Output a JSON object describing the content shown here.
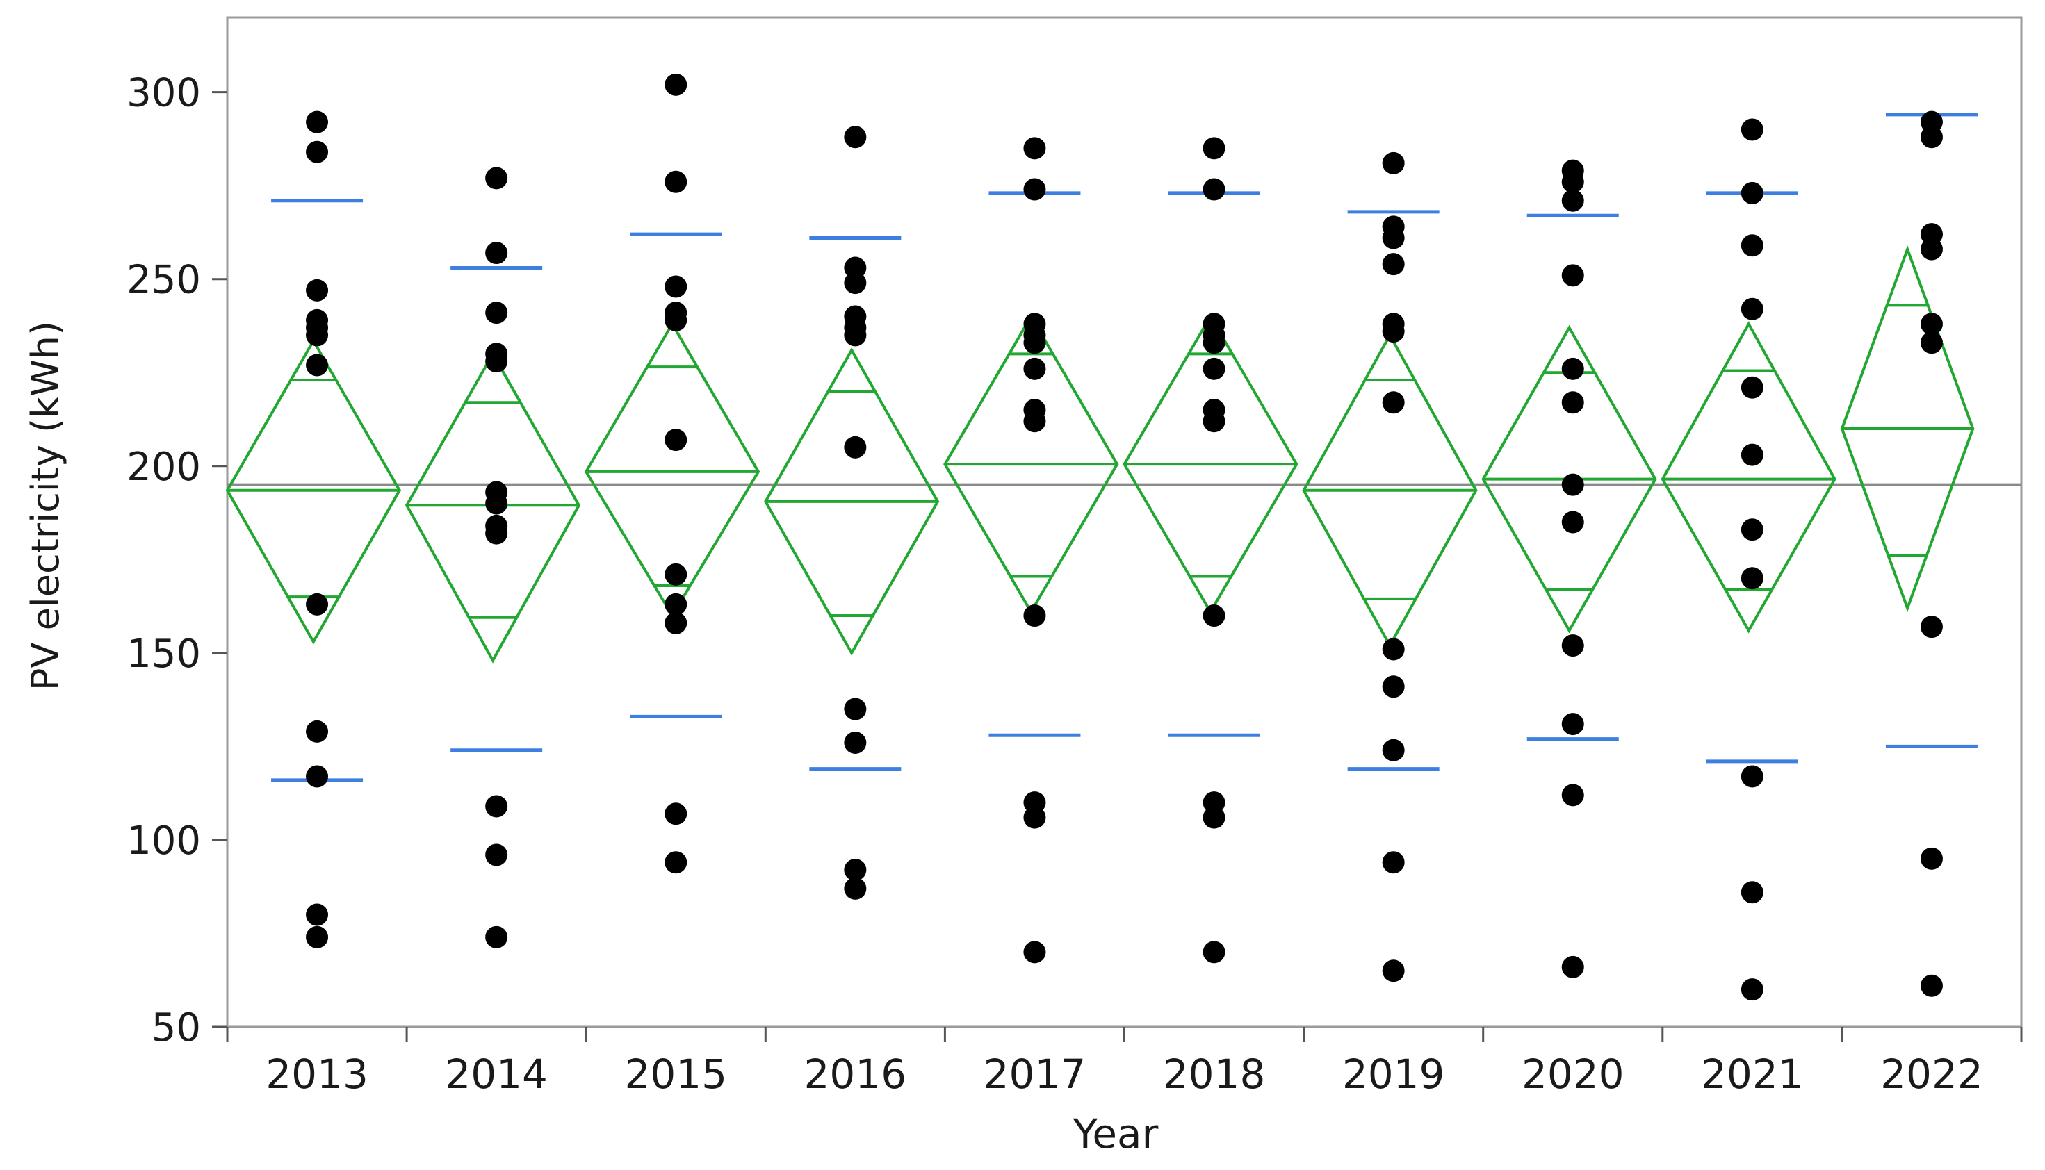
{
  "chart_data": {
    "type": "scatter",
    "subtype": "oneway means diamonds",
    "xlabel": "Year",
    "ylabel": "PV electricity (kWh)",
    "ylim": [
      50,
      320
    ],
    "yticks": [
      50,
      100,
      150,
      200,
      250,
      300
    ],
    "categories": [
      "2013",
      "2014",
      "2015",
      "2016",
      "2017",
      "2018",
      "2019",
      "2020",
      "2021",
      "2022"
    ],
    "grand_mean": 195,
    "group_weights": [
      0.96,
      0.96,
      0.96,
      0.96,
      0.96,
      0.96,
      0.96,
      0.96,
      0.96,
      0.73
    ],
    "points": [
      [
        292,
        284,
        247,
        239,
        237,
        235,
        227,
        163,
        129,
        117,
        80,
        74
      ],
      [
        277,
        257,
        241,
        230,
        228,
        193,
        190,
        184,
        182,
        109,
        96,
        74
      ],
      [
        302,
        276,
        248,
        241,
        239,
        207,
        171,
        163,
        158,
        107,
        94
      ],
      [
        288,
        253,
        249,
        240,
        237,
        235,
        205,
        135,
        126,
        92,
        87
      ],
      [
        285,
        274,
        238,
        235,
        233,
        226,
        215,
        212,
        160,
        110,
        106,
        70
      ],
      [
        285,
        274,
        238,
        235,
        233,
        226,
        215,
        212,
        160,
        110,
        106,
        70
      ],
      [
        281,
        264,
        261,
        254,
        238,
        236,
        217,
        151,
        141,
        124,
        94,
        65
      ],
      [
        279,
        276,
        271,
        251,
        226,
        217,
        195,
        185,
        152,
        131,
        112,
        66
      ],
      [
        290,
        273,
        259,
        242,
        221,
        203,
        183,
        170,
        117,
        86,
        60
      ],
      [
        292,
        288,
        262,
        258,
        238,
        233,
        157,
        95,
        61
      ]
    ],
    "means": [
      193.5,
      189.5,
      198.5,
      190.5,
      200.5,
      200.5,
      193.5,
      196.5,
      196.5,
      210
    ],
    "ci_lower": [
      153,
      148,
      160,
      150,
      161,
      161,
      152,
      156,
      156,
      162
    ],
    "ci_upper": [
      233.5,
      230,
      238,
      231,
      240,
      240,
      235,
      237,
      238,
      258
    ],
    "overlap_lower": [
      165,
      159.5,
      168,
      160,
      170.5,
      170.5,
      164.5,
      167,
      167,
      176
    ],
    "overlap_upper": [
      223,
      217,
      226.5,
      220,
      230,
      230,
      223,
      225,
      225.5,
      243
    ],
    "sd_lower": [
      116,
      124,
      133,
      119,
      128,
      128,
      119,
      127,
      121,
      125
    ],
    "sd_upper": [
      271,
      253,
      262,
      261,
      273,
      273,
      268,
      267,
      273,
      294
    ],
    "grid": false,
    "legend": "none",
    "colors": {
      "points": "#000000",
      "diamond": "#22a832",
      "sd_lines": "#3d7fe0",
      "grand_mean_line": "#8a8a8a",
      "frame": "#9a9a9a"
    }
  }
}
